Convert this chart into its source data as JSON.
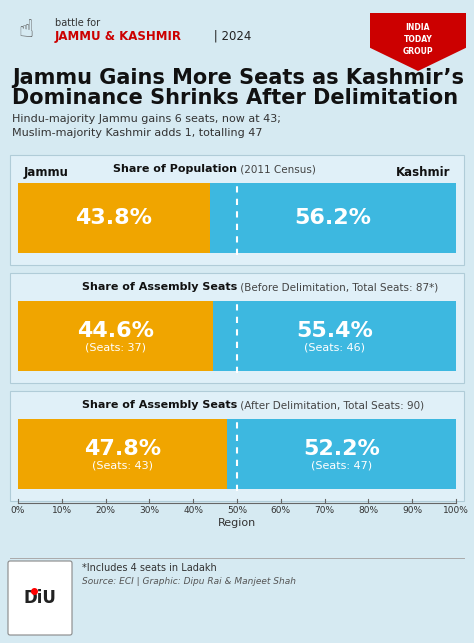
{
  "bg_color": "#d6eaf2",
  "panel_color": "#e8f4f9",
  "orange_color": "#f0a500",
  "blue_color": "#3db8e0",
  "title_line1": "Jammu Gains More Seats as Kashmir’s",
  "title_line2": "Dominance Shrinks After Delimitation",
  "subtitle_line1": "Hindu-majority Jammu gains 6 seats, now at 43;",
  "subtitle_line2": "Muslim-majority Kashmir adds 1, totalling 47",
  "header_small": "battle for",
  "header_big": "JAMMU & KASHMIR",
  "header_year": " | 2024",
  "charts": [
    {
      "title_bold": "Share of Population",
      "title_normal": " (2011 Census)",
      "jammu_pct": 43.8,
      "kashmir_pct": 56.2,
      "jammu_label": "43.8%",
      "kashmir_label": "56.2%",
      "jammu_sublabel": "",
      "kashmir_sublabel": "",
      "show_region_labels": true
    },
    {
      "title_bold": "Share of Assembly Seats",
      "title_normal": " (Before Delimitation, Total Seats: 87*)",
      "jammu_pct": 44.6,
      "kashmir_pct": 55.4,
      "jammu_label": "44.6%",
      "kashmir_label": "55.4%",
      "jammu_sublabel": "(Seats: 37)",
      "kashmir_sublabel": "(Seats: 46)",
      "show_region_labels": false
    },
    {
      "title_bold": "Share of Assembly Seats",
      "title_normal": " (After Delimitation, Total Seats: 90)",
      "jammu_pct": 47.8,
      "kashmir_pct": 52.2,
      "jammu_label": "47.8%",
      "kashmir_label": "52.2%",
      "jammu_sublabel": "(Seats: 43)",
      "kashmir_sublabel": "(Seats: 47)",
      "show_region_labels": false
    }
  ],
  "xtick_labels": [
    "0%",
    "10%",
    "20%",
    "30%",
    "40%",
    "50%",
    "60%",
    "70%",
    "80%",
    "90%",
    "100%"
  ],
  "xlabel": "Region",
  "footnote1": "*Includes 4 seats in Ladakh",
  "footnote2": "Source: ECI | Graphic: Dipu Rai & Manjeet Shah"
}
